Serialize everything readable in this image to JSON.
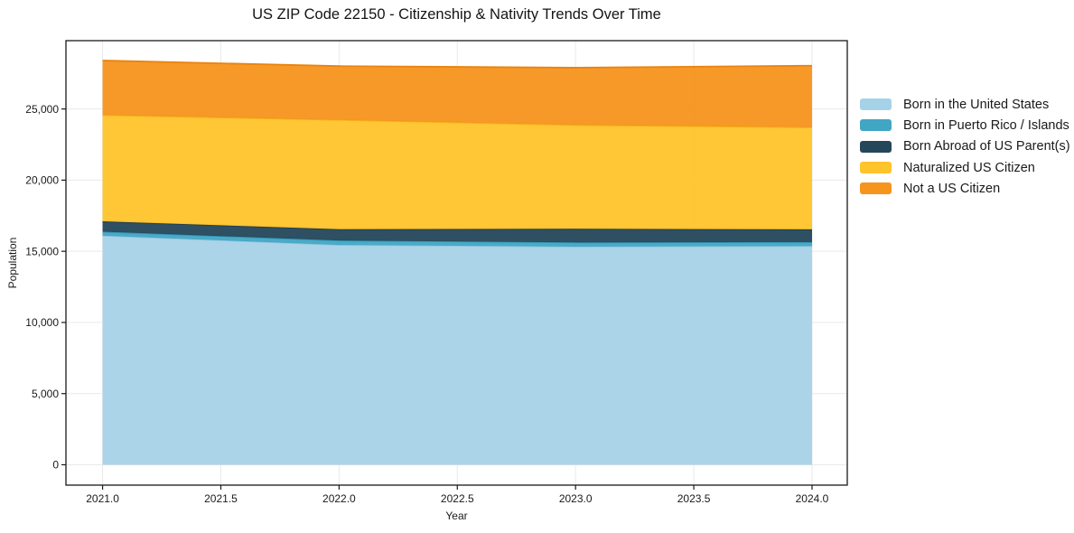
{
  "title": "US ZIP Code 22150 - Citizenship & Nativity Trends Over Time",
  "chart_data": {
    "type": "area",
    "stacked": true,
    "title": "US ZIP Code 22150 - Citizenship & Nativity Trends Over Time",
    "xlabel": "Year",
    "ylabel": "Population",
    "x": [
      2021,
      2022,
      2023,
      2024
    ],
    "series": [
      {
        "name": "Born in the United States",
        "color": "#A6D2E8",
        "edge": "#8FC4DE",
        "values": [
          16100,
          15450,
          15330,
          15370
        ]
      },
      {
        "name": "Born in Puerto Rico / Islands",
        "color": "#41A6C4",
        "edge": "#2F94B4",
        "values": [
          280,
          310,
          295,
          280
        ]
      },
      {
        "name": "Born Abroad of US Parent(s)",
        "color": "#24475A",
        "edge": "#1B3A4C",
        "values": [
          725,
          790,
          955,
          890
        ]
      },
      {
        "name": "Naturalized US Citizen",
        "color": "#FFC32B",
        "edge": "#F4B414",
        "values": [
          7470,
          7680,
          7290,
          7170
        ]
      },
      {
        "name": "Not a US Citizen",
        "color": "#F6941D",
        "edge": "#EA830F",
        "values": [
          3830,
          3780,
          4030,
          4330
        ]
      }
    ],
    "stack_totals": [
      28405,
      28010,
      27900,
      28040
    ],
    "x_ticks": [
      2021.0,
      2021.5,
      2022.0,
      2022.5,
      2023.0,
      2023.5,
      2024.0
    ],
    "y_ticks": [
      0,
      5000,
      10000,
      15000,
      20000,
      25000
    ],
    "xlim": [
      2020.845,
      2024.149
    ],
    "ylim": [
      -1430,
      29800
    ],
    "grid": true,
    "legend_position": "right-outside"
  }
}
